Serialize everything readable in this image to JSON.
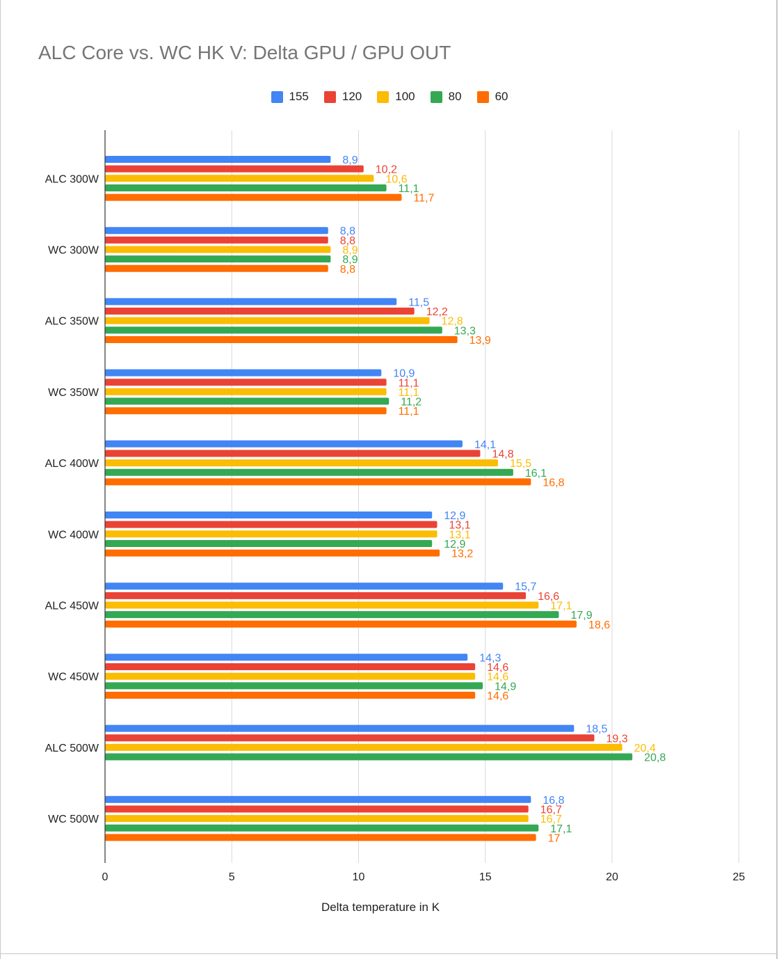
{
  "chart_data": {
    "type": "bar",
    "orientation": "horizontal",
    "title": "ALC Core vs. WC HK V: Delta GPU / GPU OUT",
    "xlabel": "Delta temperature in K",
    "ylabel": "",
    "xlim": [
      0,
      25
    ],
    "xticks": [
      "0",
      "5",
      "10",
      "15",
      "20",
      "25"
    ],
    "grid": true,
    "legend_position": "top",
    "categories": [
      "ALC 300W",
      "WC 300W",
      "ALC 350W",
      "WC 350W",
      "ALC 400W",
      "WC 400W",
      "ALC 450W",
      "WC 450W",
      "ALC 500W",
      "WC 500W"
    ],
    "series": [
      {
        "name": "155",
        "color": "#4285f4",
        "values": [
          8.9,
          8.8,
          11.5,
          10.9,
          14.1,
          12.9,
          15.7,
          14.3,
          18.5,
          16.8
        ],
        "labels": [
          "8,9",
          "8,8",
          "11,5",
          "10,9",
          "14,1",
          "12,9",
          "15,7",
          "14,3",
          "18,5",
          "16,8"
        ]
      },
      {
        "name": "120",
        "color": "#ea4335",
        "values": [
          10.2,
          8.8,
          12.2,
          11.1,
          14.8,
          13.1,
          16.6,
          14.6,
          19.3,
          16.7
        ],
        "labels": [
          "10,2",
          "8,8",
          "12,2",
          "11,1",
          "14,8",
          "13,1",
          "16,6",
          "14,6",
          "19,3",
          "16,7"
        ]
      },
      {
        "name": "100",
        "color": "#fbbc04",
        "values": [
          10.6,
          8.9,
          12.8,
          11.1,
          15.5,
          13.1,
          17.1,
          14.6,
          20.4,
          16.7
        ],
        "labels": [
          "10,6",
          "8,9",
          "12,8",
          "11,1",
          "15,5",
          "13,1",
          "17,1",
          "14,6",
          "20,4",
          "16,7"
        ]
      },
      {
        "name": "80",
        "color": "#34a853",
        "values": [
          11.1,
          8.9,
          13.3,
          11.2,
          16.1,
          12.9,
          17.9,
          14.9,
          20.8,
          17.1
        ],
        "labels": [
          "11,1",
          "8,9",
          "13,3",
          "11,2",
          "16,1",
          "12,9",
          "17,9",
          "14,9",
          "20,8",
          "17,1"
        ]
      },
      {
        "name": "60",
        "color": "#ff6d01",
        "values": [
          11.7,
          8.8,
          13.9,
          11.1,
          16.8,
          13.2,
          18.6,
          14.6,
          null,
          17
        ],
        "labels": [
          "11,7",
          "8,8",
          "13,9",
          "11,1",
          "16,8",
          "13,2",
          "18,6",
          "14,6",
          "",
          "17"
        ]
      }
    ]
  }
}
